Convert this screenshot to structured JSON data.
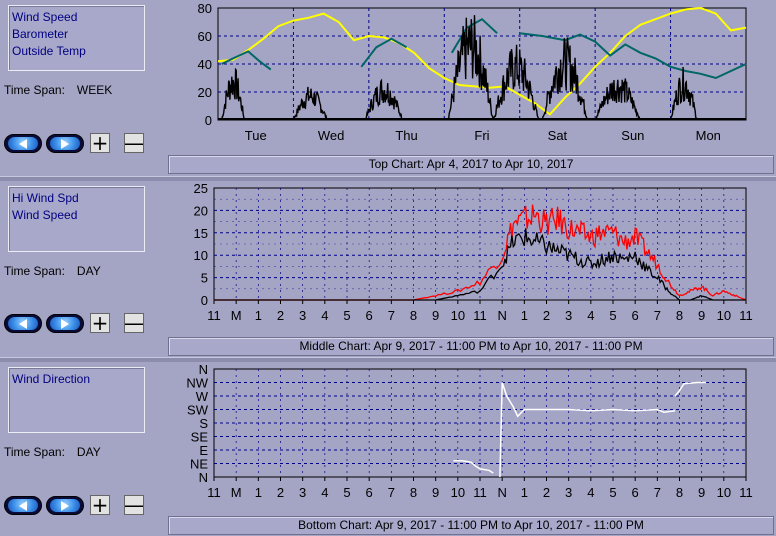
{
  "panels": [
    {
      "legend": [
        "Wind Speed",
        "Barometer",
        "Outside Temp"
      ],
      "timespan_label": "Time Span:",
      "timespan_value": "WEEK",
      "caption": {
        "prefix": "Top Chart:",
        "from": "Apr 4, 2017",
        "to_word": "to",
        "to": "Apr 10, 2017"
      }
    },
    {
      "legend": [
        "Hi Wind Spd",
        "Wind Speed"
      ],
      "timespan_label": "Time Span:",
      "timespan_value": "DAY",
      "caption": {
        "prefix": "Middle Chart:",
        "from": "Apr 9, 2017 - 11:00 PM",
        "to_word": "to",
        "to": "Apr 10, 2017 - 11:00 PM"
      }
    },
    {
      "legend": [
        "Wind Direction"
      ],
      "timespan_label": "Time Span:",
      "timespan_value": "DAY",
      "caption": {
        "prefix": "Bottom Chart:",
        "from": "Apr 9, 2017 - 11:00 PM",
        "to_word": "to",
        "to": "Apr 10, 2017 - 11:00 PM"
      }
    }
  ],
  "buttons": {
    "prev_icon": "left-arrow-icon",
    "next_icon": "right-arrow-icon",
    "zoom_in": "+",
    "zoom_out": "—"
  },
  "colors": {
    "wind": "#000000",
    "barometer": "#006666",
    "temp": "#ffff00",
    "hiwind": "#ff0000",
    "direction": "#ffffff",
    "plot_bg": "#a4a4c4"
  },
  "chart_data": [
    {
      "type": "line",
      "x_ticks": [
        "Tue",
        "Wed",
        "Thu",
        "Fri",
        "Sat",
        "Sun",
        "Mon"
      ],
      "y_ticks": [
        0,
        20,
        40,
        60,
        80
      ],
      "ylim": [
        0,
        80
      ],
      "xlim": [
        0,
        7
      ],
      "series": [
        {
          "key": "temp",
          "x": [
            0,
            0.2,
            0.4,
            0.6,
            0.8,
            1.0,
            1.2,
            1.4,
            1.6,
            1.8,
            2.0,
            2.2,
            2.4,
            2.6,
            2.8,
            3.0,
            3.2,
            3.4,
            3.6,
            3.8,
            4.0,
            4.2,
            4.4,
            4.6,
            4.8,
            5.0,
            5.2,
            5.4,
            5.6,
            5.8,
            6.0,
            6.2,
            6.4,
            6.6,
            6.8,
            7.0
          ],
          "y": [
            42,
            43,
            50,
            58,
            67,
            71,
            73,
            76,
            70,
            57,
            60,
            59,
            55,
            48,
            37,
            30,
            25,
            24,
            23,
            24,
            18,
            12,
            4,
            16,
            26,
            38,
            48,
            60,
            68,
            72,
            76,
            79,
            80,
            76,
            64,
            66
          ]
        },
        {
          "key": "barometer",
          "segments": [
            {
              "x": [
                0.05,
                0.2,
                0.4,
                0.55,
                0.7
              ],
              "y": [
                40,
                44,
                49,
                42,
                36
              ]
            },
            {
              "x": [
                1.9,
                2.1,
                2.3,
                2.5
              ],
              "y": [
                38,
                52,
                58,
                52
              ]
            },
            {
              "x": [
                3.1,
                3.3,
                3.5,
                3.7
              ],
              "y": [
                48,
                66,
                72,
                62
              ]
            },
            {
              "x": [
                4.0,
                4.3,
                4.6,
                4.8,
                5.0,
                5.2,
                5.4,
                5.6,
                5.8,
                6.0,
                6.2,
                6.4,
                6.6,
                6.8,
                7.0
              ],
              "y": [
                62,
                60,
                57,
                61,
                56,
                46,
                54,
                48,
                44,
                38,
                35,
                33,
                30,
                35,
                40
              ]
            }
          ]
        },
        {
          "key": "wind",
          "max": 80,
          "ranges": [
            [
              0.05,
              0.35,
              40
            ],
            [
              1.0,
              1.45,
              25
            ],
            [
              1.95,
              2.45,
              32
            ],
            [
              3.05,
              3.65,
              78
            ],
            [
              3.65,
              4.25,
              55
            ],
            [
              4.3,
              4.9,
              60
            ],
            [
              5.0,
              5.6,
              35
            ],
            [
              6.0,
              6.35,
              38
            ]
          ]
        }
      ]
    },
    {
      "type": "line",
      "x_ticks": [
        "11",
        "M",
        "1",
        "2",
        "3",
        "4",
        "5",
        "6",
        "7",
        "8",
        "9",
        "10",
        "11",
        "N",
        "1",
        "2",
        "3",
        "4",
        "5",
        "6",
        "7",
        "8",
        "9",
        "10",
        "11"
      ],
      "y_ticks": [
        0,
        5,
        10,
        15,
        20,
        25
      ],
      "ylim": [
        0,
        25
      ],
      "xlim": [
        0,
        24
      ],
      "series": [
        {
          "key": "hiwind",
          "x": [
            0,
            1,
            2,
            3,
            4,
            5,
            6,
            7,
            8,
            9,
            10,
            11,
            12,
            13,
            13.5,
            14,
            14.5,
            15,
            15.5,
            16,
            16.5,
            17,
            17.5,
            18,
            18.5,
            19,
            19.5,
            20,
            20.5,
            21,
            21.5,
            22,
            22.5,
            23,
            23.5,
            24
          ],
          "y": [
            0,
            0,
            0,
            0,
            0,
            0,
            0,
            0,
            0,
            0,
            1,
            2,
            4,
            10,
            17,
            18,
            19,
            17,
            18,
            16,
            15,
            14,
            15,
            15,
            13,
            14,
            11,
            8,
            4,
            1,
            2,
            3,
            1,
            2,
            1,
            0
          ]
        },
        {
          "key": "wind",
          "x": [
            0,
            9,
            10,
            11,
            12,
            13,
            13.5,
            14,
            14.5,
            15,
            15.5,
            16,
            16.5,
            17,
            17.5,
            18,
            18.5,
            19,
            19.5,
            20,
            20.5,
            21,
            21.5,
            22,
            22.5,
            23,
            24
          ],
          "y": [
            0,
            0,
            0,
            1,
            2,
            8,
            13,
            14,
            13,
            12,
            11,
            10,
            9,
            8,
            9,
            10,
            9,
            10,
            7,
            5,
            2,
            0,
            0,
            1,
            0,
            0,
            0
          ]
        }
      ]
    },
    {
      "type": "line",
      "x_ticks": [
        "11",
        "M",
        "1",
        "2",
        "3",
        "4",
        "5",
        "6",
        "7",
        "8",
        "9",
        "10",
        "11",
        "N",
        "1",
        "2",
        "3",
        "4",
        "5",
        "6",
        "7",
        "8",
        "9",
        "10",
        "11"
      ],
      "y_ticks": [
        "N",
        "NE",
        "E",
        "SE",
        "S",
        "SW",
        "W",
        "NW",
        "N"
      ],
      "ylim": [
        0,
        8
      ],
      "xlim": [
        0,
        24
      ],
      "series": [
        {
          "key": "direction",
          "segments": [
            {
              "x": [
                10.8,
                11.2,
                11.6,
                11.8,
                12.0,
                12.4,
                12.6
              ],
              "y": [
                1.2,
                1.2,
                1.1,
                0.8,
                0.6,
                0.5,
                0.3
              ]
            },
            {
              "x": [
                12.9,
                13.0,
                13.2,
                13.5,
                13.7,
                14.0,
                15.0,
                16.0,
                17.0,
                18.0,
                19.0,
                20.0,
                20.3,
                20.8
              ],
              "y": [
                0,
                7.0,
                6.0,
                5.2,
                4.5,
                5.0,
                5.0,
                5.0,
                4.9,
                5.0,
                4.9,
                5.0,
                4.8,
                4.9
              ]
            },
            {
              "x": [
                20.8,
                21.0,
                21.2,
                21.8,
                22.2
              ],
              "y": [
                6.0,
                6.4,
                6.9,
                7.0,
                7.0
              ]
            }
          ]
        }
      ]
    }
  ]
}
